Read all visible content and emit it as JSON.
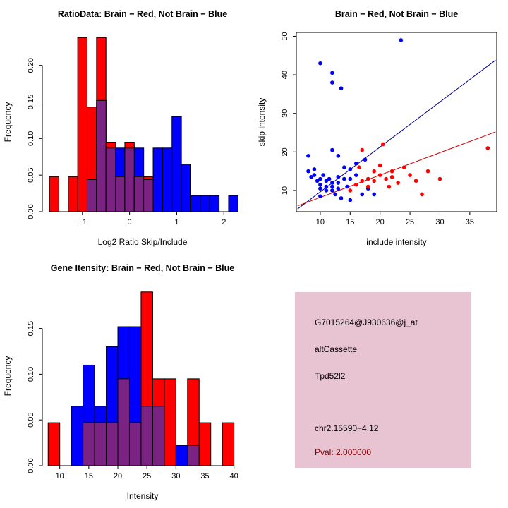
{
  "chart_data": [
    {
      "type": "histogram",
      "title": "RatioData: Brain − Red, Not Brain − Blue",
      "xlabel": "Log2 Ratio Skip/Include",
      "ylabel": "Frequency",
      "xlim": [
        -1.85,
        2.4
      ],
      "ylim": [
        0,
        0.245
      ],
      "xticks": [
        -1,
        0,
        1,
        2
      ],
      "xtick_labels": [
        "−1",
        "0",
        "1",
        "2"
      ],
      "yticks": [
        0,
        0.05,
        0.1,
        0.15,
        0.2
      ],
      "ytick_labels": [
        "0.00",
        "0.05",
        "0.10",
        "0.15",
        "0.20"
      ],
      "bin_edges": [
        -1.7,
        -1.5,
        -1.3,
        -1.1,
        -0.9,
        -0.7,
        -0.5,
        -0.3,
        -0.1,
        0.1,
        0.3,
        0.5,
        0.7,
        0.9,
        1.1,
        1.3,
        1.5,
        1.7,
        1.9,
        2.1,
        2.3
      ],
      "series": [
        {
          "name": "Brain",
          "color": "#FF0000",
          "values": [
            0.048,
            0,
            0.048,
            0.238,
            0.143,
            0.238,
            0.095,
            0.048,
            0.095,
            0.048,
            0.048,
            0,
            0,
            0,
            0,
            0,
            0,
            0,
            0,
            0
          ]
        },
        {
          "name": "Not Brain",
          "color": "#0000FF",
          "values": [
            0,
            0,
            0,
            0,
            0.044,
            0.152,
            0.087,
            0.087,
            0.087,
            0.087,
            0.044,
            0.087,
            0.087,
            0.13,
            0.065,
            0.022,
            0.022,
            0.022,
            0,
            0.022
          ]
        }
      ],
      "overlap_color": "#7B2382",
      "grid": false,
      "legend": "none"
    },
    {
      "type": "scatter",
      "title": "Brain − Red, Not Brain − Blue",
      "xlabel": "include intensity",
      "ylabel": "skip intensity",
      "xlim": [
        6,
        39.5
      ],
      "ylim": [
        4.5,
        51
      ],
      "xticks": [
        10,
        15,
        20,
        25,
        30,
        35
      ],
      "xtick_labels": [
        "10",
        "15",
        "20",
        "25",
        "30",
        "35"
      ],
      "yticks": [
        10,
        20,
        30,
        40,
        50
      ],
      "ytick_labels": [
        "10",
        "20",
        "30",
        "40",
        "50"
      ],
      "series": [
        {
          "name": "Not Brain",
          "color": "#0000FF",
          "points": [
            [
              10,
              43
            ],
            [
              12,
              40.5
            ],
            [
              12,
              38
            ],
            [
              13.5,
              36.5
            ],
            [
              23.5,
              49
            ],
            [
              8,
              19
            ],
            [
              12,
              20.5
            ],
            [
              13,
              19
            ],
            [
              8,
              15
            ],
            [
              8.5,
              13.5
            ],
            [
              9,
              15.5
            ],
            [
              9,
              14
            ],
            [
              9.5,
              12.5
            ],
            [
              10,
              13
            ],
            [
              10,
              11.5
            ],
            [
              10,
              10.5
            ],
            [
              10,
              8.5
            ],
            [
              10.5,
              14
            ],
            [
              11,
              12.5
            ],
            [
              11,
              11
            ],
            [
              11,
              10
            ],
            [
              11.5,
              13
            ],
            [
              12,
              12
            ],
            [
              12,
              11
            ],
            [
              12,
              10
            ],
            [
              12.5,
              9
            ],
            [
              13,
              13.5
            ],
            [
              13,
              12
            ],
            [
              13,
              10.5
            ],
            [
              13.5,
              8
            ],
            [
              14,
              16
            ],
            [
              14,
              13
            ],
            [
              14.5,
              11
            ],
            [
              15,
              15.5
            ],
            [
              15,
              13
            ],
            [
              15,
              7.5
            ],
            [
              16,
              17
            ],
            [
              16,
              14
            ],
            [
              17,
              9
            ],
            [
              17.5,
              18
            ],
            [
              18,
              10.5
            ],
            [
              19,
              9
            ]
          ]
        },
        {
          "name": "Brain",
          "color": "#FF0000",
          "points": [
            [
              15,
              10
            ],
            [
              16,
              11.5
            ],
            [
              16.5,
              16
            ],
            [
              17,
              12.5
            ],
            [
              17,
              20.5
            ],
            [
              18,
              13
            ],
            [
              18,
              11
            ],
            [
              19,
              15
            ],
            [
              19,
              12.5
            ],
            [
              20,
              16.5
            ],
            [
              20,
              14
            ],
            [
              20.5,
              22
            ],
            [
              21,
              13
            ],
            [
              21.5,
              11
            ],
            [
              22,
              15
            ],
            [
              22,
              13.5
            ],
            [
              23,
              12
            ],
            [
              24,
              16
            ],
            [
              25,
              14
            ],
            [
              26,
              12.5
            ],
            [
              27,
              9
            ],
            [
              28,
              15
            ],
            [
              30,
              13
            ],
            [
              38,
              21
            ]
          ]
        }
      ],
      "lines": [
        {
          "name": "not-brain-fit",
          "color": "#00008B",
          "x1": 6.2,
          "y1": 5.2,
          "x2": 39.3,
          "y2": 43.8
        },
        {
          "name": "brain-fit",
          "color": "#CD0000",
          "x1": 6.2,
          "y1": 6.0,
          "x2": 39.3,
          "y2": 25.2
        }
      ],
      "grid": false,
      "legend": "none"
    },
    {
      "type": "histogram",
      "title": "Gene Itensity: Brain − Red, Not Brain − Blue",
      "xlabel": "Intensity",
      "ylabel": "Frequency",
      "xlim": [
        7,
        41.5
      ],
      "ylim": [
        0,
        0.196
      ],
      "xticks": [
        10,
        15,
        20,
        25,
        30,
        35,
        40
      ],
      "xtick_labels": [
        "10",
        "15",
        "20",
        "25",
        "30",
        "35",
        "40"
      ],
      "yticks": [
        0,
        0.05,
        0.1,
        0.15
      ],
      "ytick_labels": [
        "0.00",
        "0.05",
        "0.10",
        "0.15"
      ],
      "bin_edges": [
        8,
        10,
        12,
        14,
        16,
        18,
        20,
        22,
        24,
        26,
        28,
        30,
        32,
        34,
        36,
        38,
        40
      ],
      "series": [
        {
          "name": "Brain",
          "color": "#FF0000",
          "values": [
            0.047,
            0,
            0,
            0.047,
            0.047,
            0.047,
            0.095,
            0.047,
            0.19,
            0.095,
            0.095,
            0,
            0.095,
            0.047,
            0,
            0.047
          ]
        },
        {
          "name": "Not Brain",
          "color": "#0000FF",
          "values": [
            0,
            0,
            0.065,
            0.11,
            0.065,
            0.13,
            0.152,
            0.152,
            0.065,
            0.065,
            0,
            0.022,
            0.022,
            0,
            0,
            0
          ]
        }
      ],
      "overlap_color": "#7B2382",
      "grid": false,
      "legend": "none"
    }
  ],
  "info": {
    "probe_id": "G7015264@J930636@j_at",
    "event_type": "altCassette",
    "gene": "Tpd52l2",
    "locus": "chr2.15590−4.12",
    "pval": "Pval: 2.000000",
    "bg_color": "#E8C3D2",
    "pval_color": "#8B0000"
  }
}
